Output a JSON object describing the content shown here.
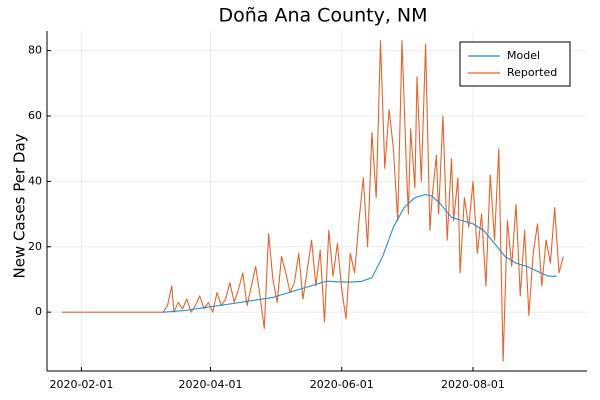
{
  "chart_data": {
    "type": "line",
    "title": "Doña Ana County, NM",
    "xlabel": "",
    "ylabel": "New Cases Per Day",
    "x_ticks": [
      "2020-02-01",
      "2020-04-01",
      "2020-06-01",
      "2020-08-01"
    ],
    "y_ticks": [
      0,
      20,
      40,
      60,
      80
    ],
    "xlim": [
      "2020-01-16",
      "2020-09-23"
    ],
    "ylim": [
      -18,
      86
    ],
    "grid": true,
    "legend_position": "top-right",
    "colors": {
      "Model": "#1f8ed8",
      "Reported": "#e2652e"
    },
    "series": [
      {
        "name": "Model",
        "x": [
          "2020-03-10",
          "2020-03-20",
          "2020-03-30",
          "2020-04-10",
          "2020-04-20",
          "2020-04-30",
          "2020-05-10",
          "2020-05-20",
          "2020-05-25",
          "2020-05-30",
          "2020-06-05",
          "2020-06-10",
          "2020-06-15",
          "2020-06-20",
          "2020-06-25",
          "2020-06-30",
          "2020-07-05",
          "2020-07-10",
          "2020-07-13",
          "2020-07-17",
          "2020-07-22",
          "2020-07-27",
          "2020-08-01",
          "2020-08-06",
          "2020-08-11",
          "2020-08-16",
          "2020-08-21",
          "2020-08-26",
          "2020-08-31",
          "2020-09-05",
          "2020-09-09"
        ],
        "y": [
          0,
          0.5,
          1.5,
          2.5,
          3.5,
          4.5,
          6.5,
          8.5,
          9.5,
          9.3,
          9.2,
          9.4,
          10.5,
          17,
          26,
          32,
          35,
          36,
          35.5,
          33,
          29,
          28,
          27,
          25,
          21,
          17,
          15,
          14,
          12.5,
          11,
          11
        ]
      },
      {
        "name": "Reported",
        "x": [
          "2020-01-23",
          "2020-03-10",
          "2020-03-12",
          "2020-03-14",
          "2020-03-15",
          "2020-03-17",
          "2020-03-19",
          "2020-03-21",
          "2020-03-23",
          "2020-03-25",
          "2020-03-27",
          "2020-03-29",
          "2020-03-31",
          "2020-04-02",
          "2020-04-04",
          "2020-04-06",
          "2020-04-08",
          "2020-04-10",
          "2020-04-12",
          "2020-04-14",
          "2020-04-16",
          "2020-04-18",
          "2020-04-20",
          "2020-04-22",
          "2020-04-24",
          "2020-04-26",
          "2020-04-28",
          "2020-04-30",
          "2020-05-02",
          "2020-05-04",
          "2020-05-06",
          "2020-05-08",
          "2020-05-10",
          "2020-05-12",
          "2020-05-14",
          "2020-05-16",
          "2020-05-18",
          "2020-05-20",
          "2020-05-22",
          "2020-05-24",
          "2020-05-26",
          "2020-05-28",
          "2020-05-30",
          "2020-06-01",
          "2020-06-03",
          "2020-06-05",
          "2020-06-07",
          "2020-06-09",
          "2020-06-11",
          "2020-06-13",
          "2020-06-15",
          "2020-06-17",
          "2020-06-19",
          "2020-06-21",
          "2020-06-23",
          "2020-06-25",
          "2020-06-27",
          "2020-06-29",
          "2020-07-01",
          "2020-07-02",
          "2020-07-03",
          "2020-07-05",
          "2020-07-06",
          "2020-07-08",
          "2020-07-10",
          "2020-07-12",
          "2020-07-13",
          "2020-07-15",
          "2020-07-16",
          "2020-07-18",
          "2020-07-20",
          "2020-07-22",
          "2020-07-23",
          "2020-07-25",
          "2020-07-26",
          "2020-07-28",
          "2020-07-30",
          "2020-08-01",
          "2020-08-03",
          "2020-08-05",
          "2020-08-07",
          "2020-08-09",
          "2020-08-11",
          "2020-08-13",
          "2020-08-15",
          "2020-08-17",
          "2020-08-19",
          "2020-08-21",
          "2020-08-23",
          "2020-08-25",
          "2020-08-27",
          "2020-08-29",
          "2020-08-31",
          "2020-09-02",
          "2020-09-04",
          "2020-09-06",
          "2020-09-08",
          "2020-09-10",
          "2020-09-12"
        ],
        "y": [
          0,
          0,
          2,
          8,
          0,
          3,
          1,
          4,
          0,
          2,
          5,
          1,
          3,
          0,
          6,
          2,
          4,
          9,
          3,
          7,
          12,
          2,
          8,
          14,
          5,
          -5,
          24,
          10,
          3,
          17,
          12,
          6,
          9,
          18,
          4,
          13,
          22,
          8,
          19,
          -3,
          25,
          11,
          21,
          7,
          -2,
          18,
          12,
          28,
          41,
          20,
          55,
          35,
          83,
          44,
          62,
          50,
          28,
          83,
          45,
          30,
          56,
          38,
          72,
          40,
          82,
          25,
          35,
          48,
          30,
          60,
          22,
          47,
          28,
          41,
          12,
          35,
          26,
          40,
          18,
          30,
          8,
          42,
          22,
          50,
          -15,
          28,
          14,
          33,
          5,
          25,
          -1,
          18,
          27,
          8,
          22,
          15,
          32,
          12,
          17
        ]
      }
    ]
  }
}
